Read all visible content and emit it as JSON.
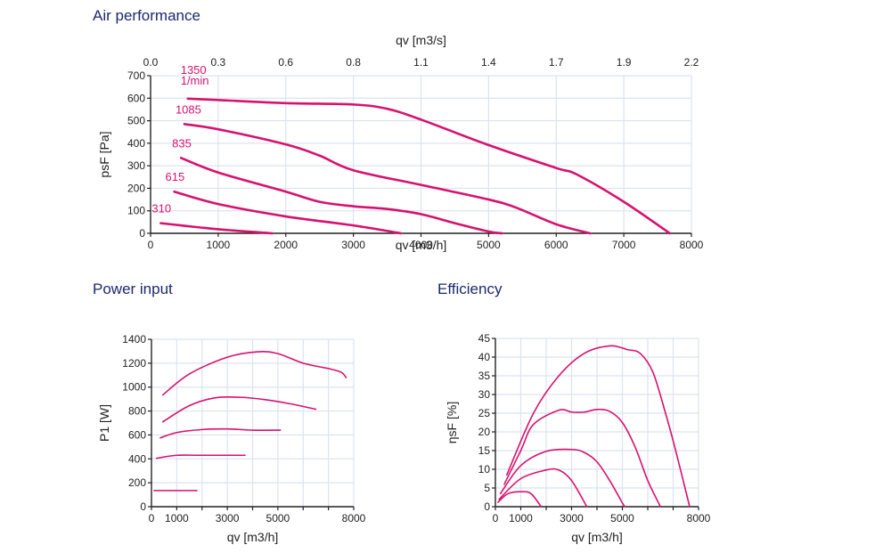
{
  "titles": {
    "air": "Air performance",
    "power": "Power input",
    "efficiency": "Efficiency"
  },
  "colors": {
    "curve": "#d6126f",
    "grid": "#dbe3ef",
    "axis": "#222222",
    "title": "#1a2a6c"
  },
  "chart_data": [
    {
      "type": "line",
      "title": "Air performance",
      "xlabel": "qv [m3/h]",
      "ylabel": "psF [Pa]",
      "x2label": "qv [m3/s]",
      "xlim": [
        0,
        8000
      ],
      "ylim": [
        0,
        700
      ],
      "xticks": [
        0,
        1000,
        2000,
        3000,
        4000,
        5000,
        6000,
        7000,
        8000
      ],
      "yticks": [
        0,
        100,
        200,
        300,
        400,
        500,
        600,
        700
      ],
      "x2ticks": [
        "0.0",
        "0.3",
        "0.6",
        "0.8",
        "1.1",
        "1.4",
        "1.7",
        "1.9",
        "2.2"
      ],
      "grid": true,
      "series": [
        {
          "name": "1350 1/min",
          "label": "1350",
          "sublabel": "1/min",
          "x": [
            550,
            1000,
            2000,
            3000,
            3500,
            4000,
            5000,
            6000,
            6300,
            7000,
            7680
          ],
          "y": [
            598,
            592,
            578,
            572,
            553,
            505,
            392,
            290,
            262,
            140,
            0
          ]
        },
        {
          "name": "1085",
          "label": "1085",
          "x": [
            500,
            1000,
            2000,
            2500,
            3000,
            4000,
            5000,
            5400,
            6000,
            6500
          ],
          "y": [
            485,
            462,
            395,
            345,
            280,
            215,
            150,
            115,
            40,
            0
          ]
        },
        {
          "name": "835",
          "label": "835",
          "x": [
            450,
            1000,
            2000,
            2500,
            3000,
            3500,
            4000,
            4500,
            5000,
            5200
          ],
          "y": [
            335,
            270,
            185,
            140,
            120,
            108,
            85,
            45,
            8,
            0
          ]
        },
        {
          "name": "615",
          "label": "615",
          "x": [
            350,
            1000,
            2000,
            3000,
            3700
          ],
          "y": [
            185,
            130,
            75,
            35,
            0
          ]
        },
        {
          "name": "310",
          "label": "310",
          "x": [
            150,
            1000,
            1800
          ],
          "y": [
            45,
            18,
            0
          ]
        }
      ]
    },
    {
      "type": "line",
      "title": "Power input",
      "xlabel": "qv [m3/h]",
      "ylabel": "P1 [W]",
      "xlim": [
        0,
        8000
      ],
      "ylim": [
        0,
        1400
      ],
      "xticks": [
        0,
        1000,
        2000,
        3000,
        4000,
        5000,
        6000,
        7000,
        8000
      ],
      "xticklabels": [
        "0",
        "1000",
        "",
        "3000",
        "",
        "5000",
        "",
        "",
        "8000"
      ],
      "yticks": [
        0,
        200,
        400,
        600,
        800,
        1000,
        1200,
        1400
      ],
      "grid": true,
      "series": [
        {
          "name": "1350",
          "x": [
            450,
            1500,
            3000,
            4200,
            5000,
            6000,
            7000,
            7500,
            7700
          ],
          "y": [
            935,
            1110,
            1250,
            1295,
            1280,
            1200,
            1155,
            1125,
            1080
          ]
        },
        {
          "name": "1085",
          "x": [
            450,
            1500,
            2500,
            3500,
            4500,
            5500,
            6500
          ],
          "y": [
            710,
            845,
            910,
            915,
            895,
            860,
            815
          ]
        },
        {
          "name": "835",
          "x": [
            350,
            1000,
            2000,
            3000,
            4000,
            5100
          ],
          "y": [
            575,
            620,
            645,
            650,
            640,
            640
          ]
        },
        {
          "name": "615",
          "x": [
            200,
            1000,
            2000,
            3700
          ],
          "y": [
            405,
            430,
            430,
            430
          ]
        },
        {
          "name": "310",
          "x": [
            100,
            1800
          ],
          "y": [
            135,
            135
          ]
        }
      ]
    },
    {
      "type": "line",
      "title": "Efficiency",
      "xlabel": "qv [m3/h]",
      "ylabel": "ηsF [%]",
      "xlim": [
        0,
        8000
      ],
      "ylim": [
        0,
        45
      ],
      "xticks": [
        0,
        1000,
        2000,
        3000,
        4000,
        5000,
        6000,
        7000,
        8000
      ],
      "xticklabels": [
        "0",
        "1000",
        "",
        "3000",
        "",
        "5000",
        "",
        "",
        "8000"
      ],
      "yticks": [
        0,
        5,
        10,
        15,
        20,
        25,
        30,
        35,
        40,
        45
      ],
      "grid": true,
      "series": [
        {
          "name": "1350",
          "x": [
            450,
            1500,
            2500,
            3500,
            4500,
            5200,
            5700,
            6200,
            6700,
            7100,
            7650
          ],
          "y": [
            8.5,
            25,
            35,
            41,
            43,
            42,
            41,
            36,
            25,
            15,
            0
          ]
        },
        {
          "name": "1085",
          "x": [
            350,
            1000,
            1500,
            2500,
            3000,
            3500,
            4000,
            4500,
            5000,
            5500,
            6000,
            6500
          ],
          "y": [
            6,
            15,
            22,
            25.8,
            25.3,
            25.3,
            26,
            25.5,
            22.5,
            16,
            7,
            0
          ]
        },
        {
          "name": "835",
          "x": [
            200,
            1000,
            2000,
            3000,
            3500,
            4000,
            4500,
            5000,
            5100
          ],
          "y": [
            3.5,
            11,
            14.8,
            15.3,
            14.5,
            12,
            7,
            1,
            0
          ]
        },
        {
          "name": "615",
          "x": [
            150,
            1000,
            2000,
            2500,
            3000,
            3600
          ],
          "y": [
            2,
            7.5,
            9.8,
            9.8,
            7,
            0
          ]
        },
        {
          "name": "310",
          "x": [
            100,
            500,
            1000,
            1400,
            1800
          ],
          "y": [
            1.2,
            3.5,
            4,
            3.5,
            0
          ]
        }
      ]
    }
  ]
}
